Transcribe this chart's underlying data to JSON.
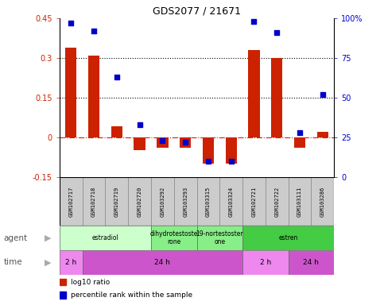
{
  "title": "GDS2077 / 21671",
  "samples": [
    "GSM102717",
    "GSM102718",
    "GSM102719",
    "GSM102720",
    "GSM103292",
    "GSM103293",
    "GSM103315",
    "GSM103324",
    "GSM102721",
    "GSM102722",
    "GSM103111",
    "GSM103286"
  ],
  "log10_ratio": [
    0.34,
    0.31,
    0.04,
    -0.05,
    -0.04,
    -0.04,
    -0.1,
    -0.1,
    0.33,
    0.3,
    -0.04,
    0.02
  ],
  "percentile_rank": [
    97,
    92,
    63,
    33,
    23,
    22,
    10,
    10,
    98,
    91,
    28,
    52
  ],
  "ylim_left": [
    -0.15,
    0.45
  ],
  "ylim_right": [
    0,
    100
  ],
  "yticks_left": [
    -0.15,
    0,
    0.15,
    0.3,
    0.45
  ],
  "yticks_right": [
    0,
    25,
    50,
    75,
    100
  ],
  "ytick_labels_left": [
    "-0.15",
    "0",
    "0.15",
    "0.3",
    "0.45"
  ],
  "ytick_labels_right": [
    "0",
    "25",
    "50",
    "75",
    "100%"
  ],
  "hlines": [
    0.15,
    0.3
  ],
  "bar_color": "#cc2200",
  "dot_color": "#0000cc",
  "zero_line_color": "#cc2200",
  "agent_groups": [
    {
      "label": "estradiol",
      "start": 0,
      "end": 4,
      "color": "#ccffcc"
    },
    {
      "label": "dihydrotestoste\nrone",
      "start": 4,
      "end": 6,
      "color": "#88ee88"
    },
    {
      "label": "19-nortestoster\none",
      "start": 6,
      "end": 8,
      "color": "#88ee88"
    },
    {
      "label": "estren",
      "start": 8,
      "end": 12,
      "color": "#44cc44"
    }
  ],
  "time_groups": [
    {
      "label": "2 h",
      "start": 0,
      "end": 1,
      "color": "#ee88ee"
    },
    {
      "label": "24 h",
      "start": 1,
      "end": 8,
      "color": "#cc55cc"
    },
    {
      "label": "2 h",
      "start": 8,
      "end": 10,
      "color": "#ee88ee"
    },
    {
      "label": "24 h",
      "start": 10,
      "end": 12,
      "color": "#cc55cc"
    }
  ],
  "legend_items": [
    {
      "label": "log10 ratio",
      "color": "#cc2200"
    },
    {
      "label": "percentile rank within the sample",
      "color": "#0000cc"
    }
  ],
  "bg_color": "#ffffff",
  "sample_box_color": "#cccccc"
}
